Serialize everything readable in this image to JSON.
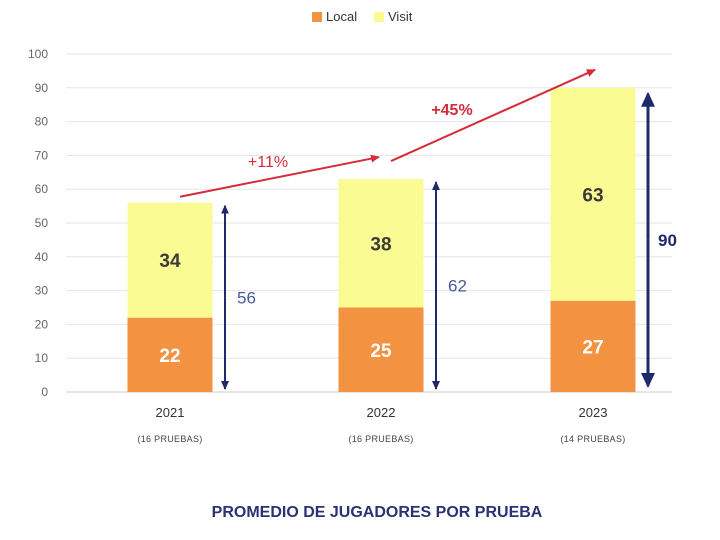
{
  "chart_data": {
    "type": "bar",
    "stacked": true,
    "title": "PROMEDIO DE JUGADORES POR PRUEBA",
    "categories": [
      "2021",
      "2022",
      "2023"
    ],
    "category_sublabels": [
      "(16 PRUEBAS)",
      "(16 PRUEBAS)",
      "(14 PRUEBAS)"
    ],
    "series": [
      {
        "name": "Local",
        "values": [
          22,
          25,
          27
        ],
        "color": "#f39241",
        "label_color": "#ffffff"
      },
      {
        "name": "Visit",
        "values": [
          34,
          38,
          63
        ],
        "color": "#fbfb94",
        "label_color": "#3a3a3a"
      }
    ],
    "totals": [
      {
        "label": "56",
        "color": "#4a5a9c",
        "bold": false
      },
      {
        "label": "62",
        "color": "#4a5a9c",
        "bold": false
      },
      {
        "label": "90",
        "color": "#1f2a6b",
        "bold": true
      }
    ],
    "growth": [
      {
        "label": "+11%",
        "bold": false
      },
      {
        "label": "+45%",
        "bold": true
      }
    ],
    "ylim": [
      0,
      100
    ],
    "yticks": [
      0,
      10,
      20,
      30,
      40,
      50,
      60,
      70,
      80,
      90,
      100
    ],
    "grid": true,
    "legend": "top-center"
  }
}
